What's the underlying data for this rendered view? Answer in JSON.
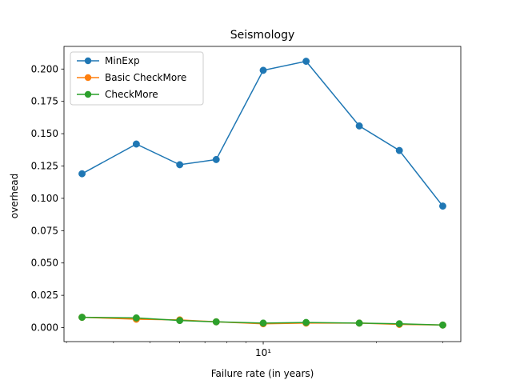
{
  "chart_data": {
    "type": "line",
    "title": "Seismology",
    "xlabel": "Failure rate (in years)",
    "ylabel": "overhead",
    "x_scale": "log",
    "x_ticks": [
      {
        "value": 10,
        "label": "10¹"
      }
    ],
    "ylim": [
      -0.0108,
      0.2175
    ],
    "y_ticks": [
      {
        "value": 0.0,
        "label": "0.000"
      },
      {
        "value": 0.025,
        "label": "0.025"
      },
      {
        "value": 0.05,
        "label": "0.050"
      },
      {
        "value": 0.075,
        "label": "0.075"
      },
      {
        "value": 0.1,
        "label": "0.100"
      },
      {
        "value": 0.125,
        "label": "0.125"
      },
      {
        "value": 0.15,
        "label": "0.150"
      },
      {
        "value": 0.175,
        "label": "0.175"
      },
      {
        "value": 0.2,
        "label": "0.200"
      }
    ],
    "grid": false,
    "legend_position": "upper left",
    "x": [
      3.3,
      4.6,
      6.0,
      7.5,
      10.0,
      13.0,
      18.0,
      23.0,
      30.0
    ],
    "series": [
      {
        "name": "MinExp",
        "color": "#1f77b4",
        "values": [
          0.119,
          0.142,
          0.126,
          0.13,
          0.199,
          0.206,
          0.156,
          0.137,
          0.094
        ]
      },
      {
        "name": "Basic CheckMore",
        "color": "#ff7f0e",
        "values": [
          0.008,
          0.0065,
          0.006,
          0.0045,
          0.003,
          0.0035,
          0.0035,
          0.0025,
          0.002
        ]
      },
      {
        "name": "CheckMore",
        "color": "#2ca02c",
        "values": [
          0.008,
          0.0075,
          0.0055,
          0.0045,
          0.0035,
          0.004,
          0.0035,
          0.003,
          0.002
        ]
      }
    ]
  }
}
